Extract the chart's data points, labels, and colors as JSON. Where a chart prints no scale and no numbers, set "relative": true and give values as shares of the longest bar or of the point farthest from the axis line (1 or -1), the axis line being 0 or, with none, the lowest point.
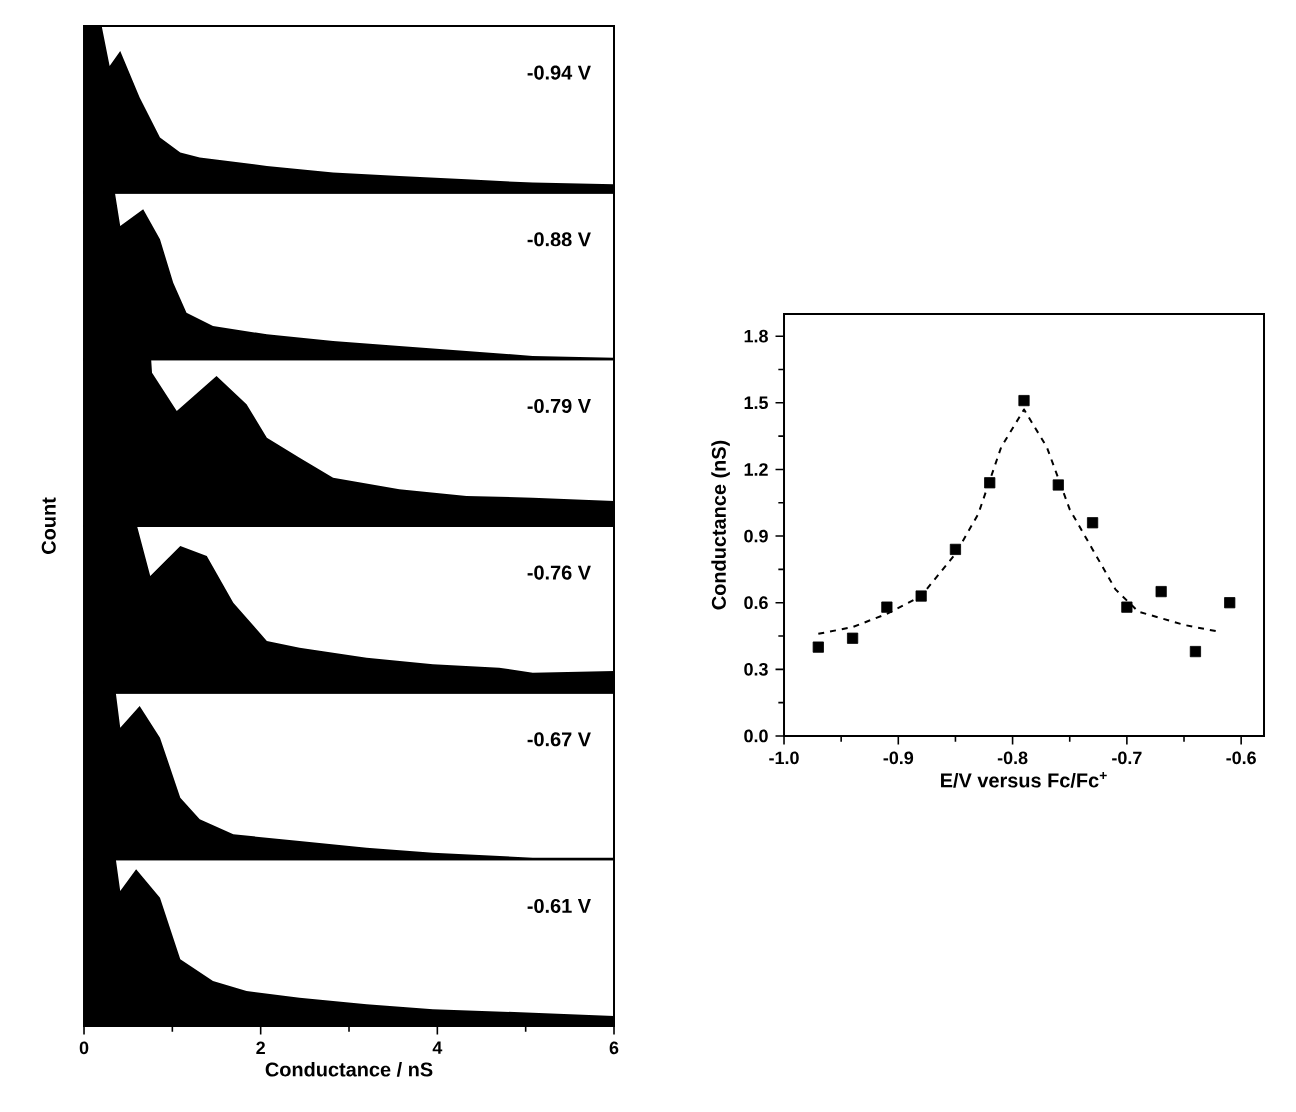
{
  "chart_data": [
    {
      "type": "area",
      "relative": true,
      "color": "#000000",
      "xlim": [
        0,
        6
      ],
      "tick_labels": false,
      "annotations": [
        "-0.94 V"
      ],
      "x": [
        0,
        0.2,
        0.29,
        0.41,
        0.63,
        0.86,
        1.09,
        1.31,
        2.07,
        2.82,
        3.57,
        4.33,
        5.08,
        6
      ],
      "values": [
        1,
        1,
        0.76,
        0.85,
        0.57,
        0.33,
        0.24,
        0.21,
        0.16,
        0.12,
        0.1,
        0.08,
        0.06,
        0.05
      ]
    },
    {
      "type": "area",
      "relative": true,
      "color": "#000000",
      "xlim": [
        0,
        6
      ],
      "tick_labels": false,
      "annotations": [
        "-0.88 V"
      ],
      "x": [
        0,
        0.35,
        0.41,
        0.67,
        0.86,
        1.01,
        1.16,
        1.46,
        2.07,
        2.82,
        3.57,
        4.33,
        5.08,
        6
      ],
      "values": [
        1,
        1,
        0.8,
        0.9,
        0.72,
        0.46,
        0.28,
        0.2,
        0.15,
        0.11,
        0.08,
        0.05,
        0.02,
        0.01
      ]
    },
    {
      "type": "area",
      "relative": true,
      "color": "#000000",
      "xlim": [
        0,
        6
      ],
      "tick_labels": false,
      "annotations": [
        "-0.79 V"
      ],
      "ylabel": "Count",
      "x": [
        0,
        0.76,
        0.77,
        1.05,
        1.5,
        1.84,
        2.07,
        2.44,
        2.82,
        3.57,
        4.33,
        5.08,
        6
      ],
      "values": [
        1,
        1,
        0.92,
        0.69,
        0.9,
        0.73,
        0.53,
        0.41,
        0.29,
        0.22,
        0.18,
        0.17,
        0.15
      ]
    },
    {
      "type": "area",
      "relative": true,
      "color": "#000000",
      "xlim": [
        0,
        6
      ],
      "tick_labels": false,
      "annotations": [
        "-0.76 V"
      ],
      "x": [
        0,
        0.6,
        0.75,
        1.09,
        1.39,
        1.69,
        2.07,
        2.44,
        3.2,
        3.95,
        4.7,
        5.08,
        6
      ],
      "values": [
        1,
        1,
        0.7,
        0.88,
        0.82,
        0.54,
        0.31,
        0.27,
        0.21,
        0.17,
        0.15,
        0.12,
        0.13
      ]
    },
    {
      "type": "area",
      "relative": true,
      "color": "#000000",
      "xlim": [
        0,
        6
      ],
      "tick_labels": false,
      "annotations": [
        "-0.67 V"
      ],
      "x": [
        0,
        0.36,
        0.41,
        0.63,
        0.86,
        1.09,
        1.31,
        1.69,
        2.44,
        3.2,
        3.95,
        5.08,
        6
      ],
      "values": [
        1,
        1,
        0.79,
        0.92,
        0.73,
        0.37,
        0.24,
        0.15,
        0.11,
        0.07,
        0.04,
        0.01,
        0.01
      ]
    },
    {
      "type": "area",
      "relative": true,
      "color": "#000000",
      "xlim": [
        0,
        6
      ],
      "xticks": [
        0,
        2,
        4,
        6
      ],
      "tick_labels": "x",
      "xlabel": "Conductance / nS",
      "annotations": [
        "-0.61 V"
      ],
      "x": [
        0,
        0.36,
        0.41,
        0.59,
        0.86,
        1.09,
        1.46,
        1.84,
        2.44,
        3.2,
        3.95,
        5.08,
        6
      ],
      "values": [
        1,
        1,
        0.81,
        0.94,
        0.77,
        0.4,
        0.27,
        0.21,
        0.17,
        0.13,
        0.1,
        0.08,
        0.06
      ]
    },
    {
      "type": "scatter",
      "xlabel": "E/V versus Fc/Fc$^{+}$",
      "ylabel": "Conductance (nS)",
      "xlim": [
        -1.0,
        -0.58
      ],
      "ylim": [
        0,
        1.9
      ],
      "xticks": [
        {
          "value": -1.0,
          "label": "-1.0"
        },
        -0.9,
        -0.8,
        -0.7,
        -0.6
      ],
      "yticks": [
        {
          "value": 0,
          "label": "0.0"
        },
        0.3,
        0.6,
        0.9,
        1.2,
        1.5,
        1.8
      ],
      "series": [
        {
          "type": "scatter",
          "color": "#000000",
          "marker": "square",
          "x": [
            -0.97,
            -0.94,
            -0.91,
            -0.88,
            -0.85,
            -0.82,
            -0.79,
            -0.76,
            -0.73,
            -0.7,
            -0.67,
            -0.64,
            -0.61
          ],
          "values": [
            0.4,
            0.44,
            0.58,
            0.63,
            0.84,
            1.14,
            1.51,
            1.13,
            0.96,
            0.58,
            0.65,
            0.38,
            0.6
          ]
        },
        {
          "type": "line",
          "color": "#000000",
          "line_style": "dashed",
          "x": [
            -0.97,
            -0.94,
            -0.91,
            -0.88,
            -0.85,
            -0.83,
            -0.81,
            -0.79,
            -0.77,
            -0.75,
            -0.73,
            -0.71,
            -0.69,
            -0.67,
            -0.65,
            -0.62
          ],
          "values": [
            0.46,
            0.49,
            0.55,
            0.63,
            0.82,
            1.0,
            1.3,
            1.47,
            1.3,
            1.02,
            0.84,
            0.66,
            0.56,
            0.53,
            0.5,
            0.47
          ]
        }
      ]
    }
  ]
}
